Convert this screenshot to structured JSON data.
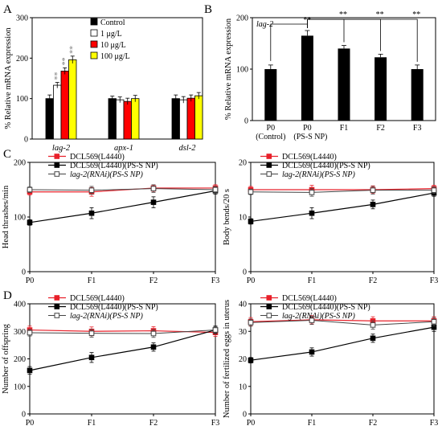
{
  "colors": {
    "control": "#000000",
    "low": "#ffffff",
    "mid": "#ff0000",
    "high": "#ffff00",
    "red_line": "#e8202a",
    "black_line": "#000000",
    "grey_line": "#444444",
    "sig": "#777777"
  },
  "chart_data": [
    {
      "panel": "A",
      "type": "bar",
      "ylabel": "% Relative mRNA expression",
      "ylim": [
        0,
        300
      ],
      "yticks": [
        0,
        100,
        200,
        300
      ],
      "categories": [
        "lag-2",
        "apx-1",
        "dsl-2"
      ],
      "series": [
        {
          "name": "Control",
          "values": [
            100,
            100,
            100
          ],
          "errors": [
            9,
            6,
            9
          ],
          "stars": [
            "",
            "",
            ""
          ]
        },
        {
          "name": "1 μg/L",
          "values": [
            133,
            97,
            97
          ],
          "errors": [
            7,
            7,
            8
          ],
          "stars": [
            "**",
            "",
            ""
          ]
        },
        {
          "name": "10 μg/L",
          "values": [
            168,
            93,
            101
          ],
          "errors": [
            8,
            8,
            8
          ],
          "stars": [
            "**",
            "",
            ""
          ]
        },
        {
          "name": "100 μg/L",
          "values": [
            196,
            100,
            107
          ],
          "errors": [
            9,
            8,
            8
          ],
          "stars": [
            "**",
            "",
            ""
          ]
        }
      ]
    },
    {
      "panel": "B",
      "type": "bar",
      "title": "lag-2",
      "ylabel": "% Relative mRNA expression",
      "ylim": [
        0,
        200
      ],
      "yticks": [
        0,
        100,
        200
      ],
      "categories": [
        "P0",
        "P0",
        "F1",
        "F2",
        "F3"
      ],
      "values": [
        100,
        165,
        140,
        123,
        100
      ],
      "errors": [
        8,
        10,
        6,
        6,
        8
      ],
      "group_labels": [
        "(Control)",
        "(PS-S NP)"
      ],
      "significance": [
        "**",
        "**",
        "**",
        "**"
      ]
    },
    {
      "panel": "C",
      "type": "line",
      "ylabel": "Head thrashes/min",
      "ylim": [
        0,
        200
      ],
      "yticks": [
        0,
        100,
        200
      ],
      "x": [
        "P0",
        "F1",
        "F2",
        "F3"
      ],
      "series": [
        {
          "name": "DCL569(L4440)",
          "values": [
            146,
            146,
            153,
            153
          ],
          "errors": [
            6,
            8,
            6,
            6
          ]
        },
        {
          "name": "DCL569(L4440)(PS-S NP)",
          "values": [
            90,
            107,
            127,
            148
          ],
          "errors": [
            5,
            10,
            10,
            6
          ]
        },
        {
          "name": "lag-2(RNAi)(PS-S NP)",
          "values": [
            150,
            149,
            152,
            150
          ],
          "errors": [
            5,
            7,
            7,
            6
          ]
        }
      ]
    },
    {
      "panel": "C2",
      "type": "line",
      "ylabel": "Body bends/20 s",
      "ylim": [
        0,
        20
      ],
      "yticks": [
        0,
        10,
        20
      ],
      "x": [
        "P0",
        "F1",
        "F2",
        "F3"
      ],
      "series": [
        {
          "name": "DCL569(L4440)",
          "values": [
            15,
            15,
            15,
            15.2
          ],
          "errors": [
            0.6,
            0.8,
            0.7,
            0.6
          ]
        },
        {
          "name": "DCL569(L4440)(PS-S NP)",
          "values": [
            9.2,
            10.7,
            12.3,
            14.4
          ],
          "errors": [
            0.5,
            1,
            0.8,
            0.6
          ]
        },
        {
          "name": "lag-2(RNAi)(PS-S NP)",
          "values": [
            14.6,
            14.5,
            14.9,
            14.9
          ],
          "errors": [
            0.5,
            0.7,
            0.7,
            0.6
          ]
        }
      ]
    },
    {
      "panel": "D",
      "type": "line",
      "ylabel": "Number of offspring",
      "ylim": [
        0,
        400
      ],
      "yticks": [
        0,
        100,
        200,
        300,
        400
      ],
      "x": [
        "P0",
        "F1",
        "F2",
        "F3"
      ],
      "series": [
        {
          "name": "DCL569(L4440)",
          "values": [
            305,
            300,
            302,
            296
          ],
          "errors": [
            14,
            16,
            15,
            14
          ]
        },
        {
          "name": "DCL569(L4440)(PS-S NP)",
          "values": [
            158,
            205,
            243,
            305
          ],
          "errors": [
            14,
            18,
            15,
            14
          ]
        },
        {
          "name": "lag-2(RNAi)(PS-S NP)",
          "values": [
            295,
            293,
            292,
            305
          ],
          "errors": [
            12,
            14,
            14,
            12
          ]
        }
      ]
    },
    {
      "panel": "D2",
      "type": "line",
      "ylabel": "Number of fertilized eggs in uterus",
      "ylim": [
        0,
        40
      ],
      "yticks": [
        0,
        10,
        20,
        30,
        40
      ],
      "x": [
        "P0",
        "F1",
        "F2",
        "F3"
      ],
      "series": [
        {
          "name": "DCL569(L4440)",
          "values": [
            33.5,
            34.2,
            33.8,
            33.8
          ],
          "errors": [
            1.5,
            1.5,
            1.5,
            1.5
          ]
        },
        {
          "name": "DCL569(L4440)(PS-S NP)",
          "values": [
            19.5,
            22.5,
            27.5,
            31.5
          ],
          "errors": [
            1,
            1.5,
            1.5,
            1.5
          ]
        },
        {
          "name": "lag-2(RNAi)(PS-S NP)",
          "values": [
            33.2,
            34,
            32.3,
            33.5
          ],
          "errors": [
            1.3,
            1.5,
            1.5,
            1.5
          ]
        }
      ]
    }
  ],
  "panel_labels": [
    "A",
    "B",
    "C",
    "D"
  ]
}
